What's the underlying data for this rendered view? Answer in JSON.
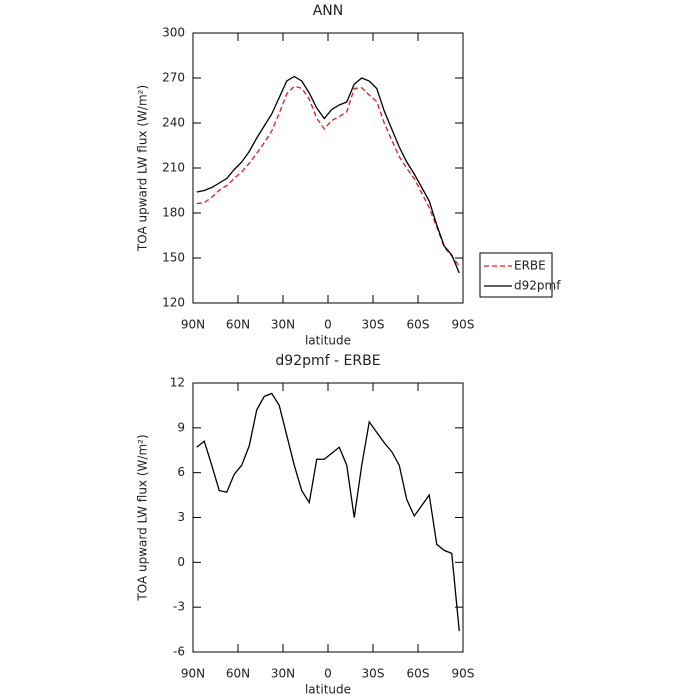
{
  "chart_data": [
    {
      "type": "line",
      "title": "ANN",
      "x_label": "latitude",
      "y_label": "TOA upward LW flux (W/m²)",
      "x": [
        87.5,
        82.5,
        77.5,
        72.5,
        67.5,
        62.5,
        57.5,
        52.5,
        47.5,
        42.5,
        37.5,
        32.5,
        27.5,
        22.5,
        17.5,
        12.5,
        7.5,
        2.5,
        -2.5,
        -7.5,
        -12.5,
        -17.5,
        -22.5,
        -27.5,
        -32.5,
        -37.5,
        -42.5,
        -47.5,
        -52.5,
        -57.5,
        -62.5,
        -67.5,
        -72.5,
        -77.5,
        -82.5,
        -87.5
      ],
      "series": [
        {
          "name": "ERBE",
          "color": "#e41a1c",
          "dashed": true,
          "values": [
            186.3,
            186.9,
            190.5,
            195.2,
            198.3,
            203.1,
            207.5,
            213.2,
            219.8,
            226.9,
            234.7,
            246.5,
            259.5,
            264.5,
            263.2,
            256,
            243.1,
            236.1,
            241.7,
            244.3,
            247.5,
            263,
            263.5,
            258.6,
            254.3,
            240,
            228.6,
            217.5,
            209.8,
            202.9,
            193.2,
            183.5,
            170.8,
            157.2,
            151.4,
            144.6
          ]
        },
        {
          "name": "d92pmf",
          "color": "#000000",
          "dashed": false,
          "values": [
            194,
            195,
            197,
            200,
            203,
            209,
            214,
            221,
            230,
            238,
            246,
            257,
            268,
            271,
            268,
            260,
            250,
            243,
            249,
            252,
            254,
            266,
            270,
            268,
            263,
            248,
            236,
            224,
            214,
            206,
            197,
            188,
            172,
            158,
            152,
            140
          ]
        }
      ],
      "xlim": [
        90,
        -90
      ],
      "xticks": [
        {
          "value": 90,
          "label": "90N"
        },
        {
          "value": 60,
          "label": "60N"
        },
        {
          "value": 30,
          "label": "30N"
        },
        0,
        {
          "value": -30,
          "label": "30S"
        },
        {
          "value": -60,
          "label": "60S"
        },
        {
          "value": -90,
          "label": "90S"
        }
      ],
      "ylim": [
        120,
        300
      ],
      "yticks": [
        120,
        150,
        180,
        210,
        240,
        270,
        300
      ],
      "legend": "right"
    },
    {
      "type": "line",
      "title": "d92pmf - ERBE",
      "x_label": "latitude",
      "y_label": "TOA upward LW flux (W/m²)",
      "x": [
        87.5,
        82.5,
        77.5,
        72.5,
        67.5,
        62.5,
        57.5,
        52.5,
        47.5,
        42.5,
        37.5,
        32.5,
        27.5,
        22.5,
        17.5,
        12.5,
        7.5,
        2.5,
        -2.5,
        -7.5,
        -12.5,
        -17.5,
        -22.5,
        -27.5,
        -32.5,
        -37.5,
        -42.5,
        -47.5,
        -52.5,
        -57.5,
        -62.5,
        -67.5,
        -72.5,
        -77.5,
        -82.5,
        -87.5
      ],
      "values": [
        7.7,
        8.1,
        6.5,
        4.8,
        4.7,
        5.9,
        6.5,
        7.8,
        10.2,
        11.1,
        11.3,
        10.5,
        8.5,
        6.5,
        4.8,
        4,
        6.9,
        6.9,
        7.3,
        7.7,
        6.5,
        3,
        6.5,
        9.4,
        8.7,
        8,
        7.4,
        6.5,
        4.2,
        3.1,
        3.8,
        4.5,
        1.2,
        0.8,
        0.6,
        -4.6
      ],
      "color": "#000000",
      "xlim": [
        90,
        -90
      ],
      "xticks": [
        {
          "value": 90,
          "label": "90N"
        },
        {
          "value": 60,
          "label": "60N"
        },
        {
          "value": 30,
          "label": "30N"
        },
        0,
        {
          "value": -30,
          "label": "30S"
        },
        {
          "value": -60,
          "label": "60S"
        },
        {
          "value": -90,
          "label": "90S"
        }
      ],
      "ylim": [
        -6,
        12
      ],
      "yticks": [
        -6,
        -3,
        0,
        3,
        6,
        9,
        12
      ]
    }
  ]
}
